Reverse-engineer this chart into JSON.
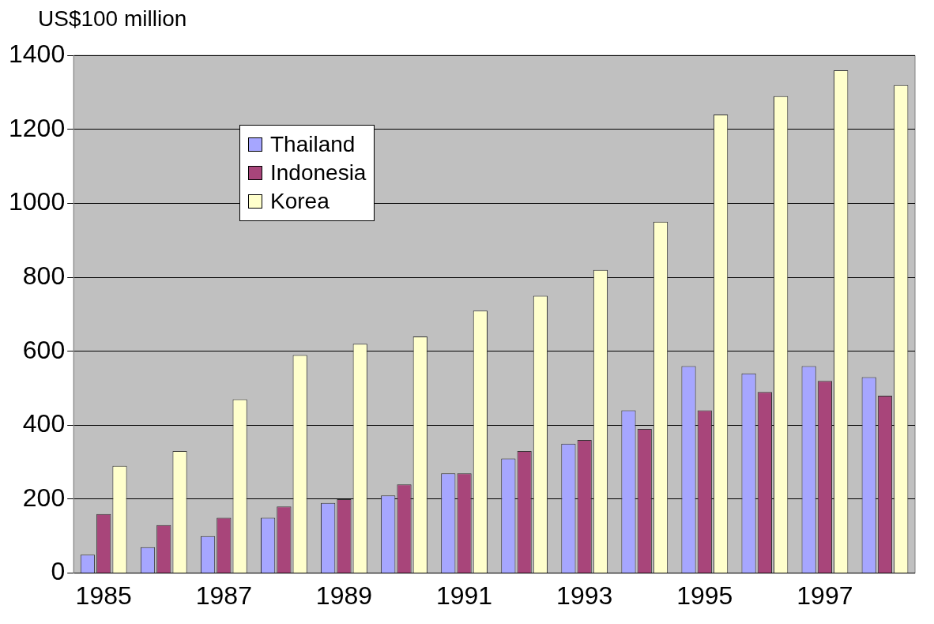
{
  "chart_data": {
    "type": "bar",
    "ylabel": "US$100 million",
    "categories": [
      "1985",
      null,
      "1987",
      null,
      "1989",
      null,
      "1991",
      null,
      "1993",
      null,
      "1995",
      null,
      "1997",
      null
    ],
    "series": [
      {
        "name": "Thailand",
        "color": "#a6a6ff",
        "values": [
          50,
          70,
          100,
          150,
          190,
          210,
          270,
          310,
          350,
          440,
          560,
          540,
          560,
          530
        ]
      },
      {
        "name": "Indonesia",
        "color": "#a8457a",
        "values": [
          160,
          130,
          150,
          180,
          200,
          240,
          270,
          330,
          360,
          390,
          440,
          490,
          520,
          480
        ]
      },
      {
        "name": "Korea",
        "color": "#ffffcc",
        "values": [
          290,
          330,
          470,
          590,
          620,
          640,
          710,
          750,
          820,
          950,
          1240,
          1290,
          1360,
          1320
        ]
      }
    ],
    "ylim": [
      0,
      1400
    ],
    "yticks": [
      0,
      200,
      400,
      600,
      800,
      1000,
      1200,
      1400
    ],
    "grid": "y",
    "legend": "top left"
  }
}
